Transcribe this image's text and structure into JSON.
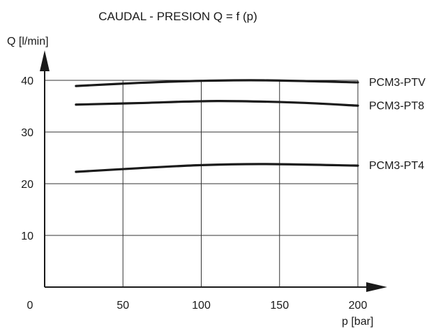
{
  "chart_data": {
    "type": "line",
    "title": "CAUDAL - PRESION Q = f (p)",
    "xlabel": "p [bar]",
    "ylabel": "Q [l/min]",
    "xlim": [
      0,
      200
    ],
    "ylim": [
      0,
      40
    ],
    "x_ticks": [
      0,
      50,
      100,
      150,
      200
    ],
    "y_ticks": [
      10,
      20,
      30,
      40
    ],
    "x_tick_labels": [
      "0",
      "50",
      "100",
      "150",
      "200"
    ],
    "y_tick_labels": [
      "10",
      "20",
      "30",
      "40"
    ],
    "grid": true,
    "series": [
      {
        "name": "PCM3-PTV",
        "x": [
          20,
          60,
          100,
          140,
          200
        ],
        "y": [
          38.9,
          39.5,
          39.9,
          40.0,
          39.6
        ]
      },
      {
        "name": "PCM3-PT8",
        "x": [
          20,
          60,
          110,
          160,
          200
        ],
        "y": [
          35.3,
          35.6,
          36.0,
          35.7,
          35.1
        ]
      },
      {
        "name": "PCM3-PT4",
        "x": [
          20,
          60,
          100,
          140,
          200
        ],
        "y": [
          22.3,
          23.0,
          23.6,
          23.8,
          23.5
        ]
      }
    ]
  },
  "colors": {
    "line": "#1a1a1a",
    "grid": "#333333",
    "background": "#ffffff"
  }
}
